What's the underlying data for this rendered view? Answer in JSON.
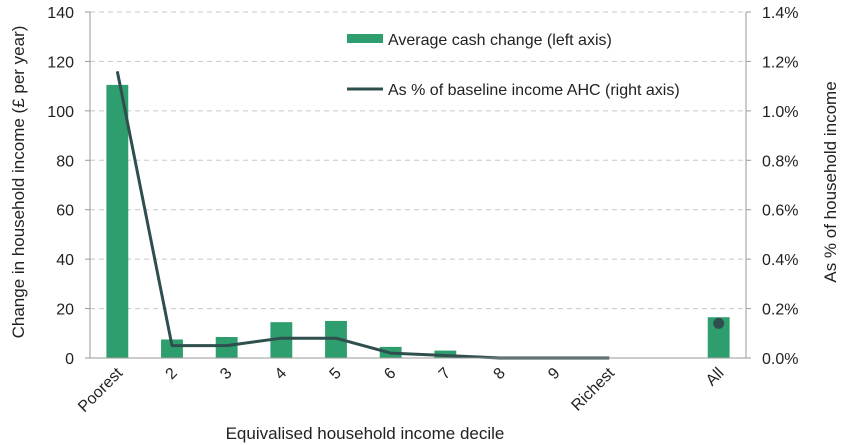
{
  "chart_data": {
    "type": "bar+line",
    "title": "",
    "categories": [
      "Poorest",
      "2",
      "3",
      "4",
      "5",
      "6",
      "7",
      "8",
      "9",
      "Richest",
      "",
      "All"
    ],
    "series": [
      {
        "name": "Average cash change (left axis)",
        "type": "bar",
        "axis": "left",
        "color": "#2e9e6e",
        "values": [
          110.5,
          7.5,
          8.5,
          14.5,
          15,
          4.5,
          3,
          0,
          0,
          0,
          null,
          16.5
        ]
      },
      {
        "name": "As % of baseline income AHC (right axis)",
        "type": "line",
        "axis": "right",
        "color": "#2f4f4f",
        "values": [
          1.16,
          0.05,
          0.05,
          0.08,
          0.08,
          0.02,
          0.01,
          0.0,
          0.0,
          0.0,
          null,
          0.14
        ]
      }
    ],
    "xlabel": "Equivalised household income decile",
    "ylabel_left": "Change in household income (£ per year)",
    "ylabel_right": "As % of household income",
    "ylim_left": [
      0,
      140
    ],
    "ylim_right": [
      0,
      1.4
    ],
    "yticks_left": [
      "0",
      "20",
      "40",
      "60",
      "80",
      "100",
      "120",
      "140"
    ],
    "yticks_right": [
      "0.0%",
      "0.2%",
      "0.4%",
      "0.6%",
      "0.8%",
      "1.0%",
      "1.2%",
      "1.4%"
    ],
    "grid": true,
    "legend_position": "top-right"
  }
}
